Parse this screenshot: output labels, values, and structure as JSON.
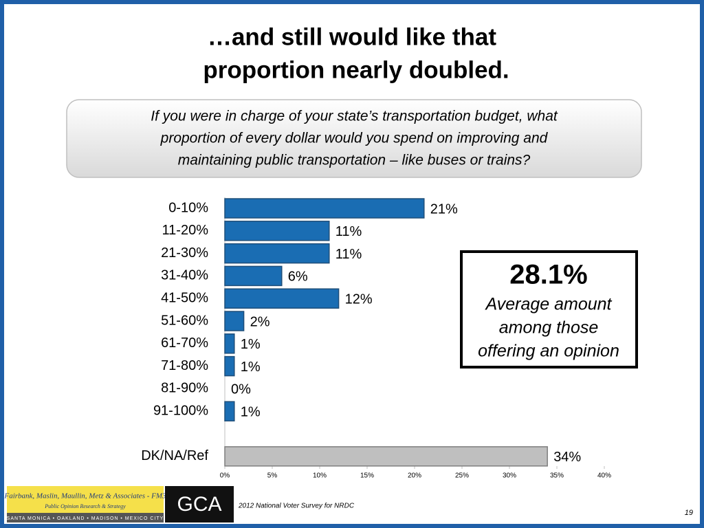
{
  "title": [
    "…and still would like that",
    "proportion nearly doubled."
  ],
  "question": [
    "If you were in charge of your state’s transportation budget, what",
    "proportion of every dollar would you spend on improving and",
    "maintaining public transportation – like buses or trains?"
  ],
  "callout": {
    "value": "28.1%",
    "text": [
      "Average amount",
      "among those",
      "offering an opinion"
    ]
  },
  "chart_data": {
    "type": "hbar",
    "categories": [
      "0-10%",
      "11-20%",
      "21-30%",
      "31-40%",
      "41-50%",
      "51-60%",
      "61-70%",
      "71-80%",
      "81-90%",
      "91-100%",
      "DK/NA/Ref"
    ],
    "values": [
      21,
      11,
      11,
      6,
      12,
      2,
      1,
      1,
      0,
      1,
      34
    ],
    "value_labels": [
      "21%",
      "11%",
      "11%",
      "6%",
      "12%",
      "2%",
      "1%",
      "1%",
      "0%",
      "1%",
      "34%"
    ],
    "colors": [
      "#1a6db3",
      "#1a6db3",
      "#1a6db3",
      "#1a6db3",
      "#1a6db3",
      "#1a6db3",
      "#1a6db3",
      "#1a6db3",
      "#1a6db3",
      "#1a6db3",
      "#bfbfbf"
    ],
    "xlim": [
      0,
      40
    ],
    "xticks": [
      {
        "value": 0,
        "label": "0%"
      },
      {
        "value": 5,
        "label": "5%"
      },
      {
        "value": 10,
        "label": "10%"
      },
      {
        "value": 15,
        "label": "15%"
      },
      {
        "value": 20,
        "label": "20%"
      },
      {
        "value": 25,
        "label": "25%"
      },
      {
        "value": 30,
        "label": "30%"
      },
      {
        "value": 35,
        "label": "35%"
      },
      {
        "value": 40,
        "label": "40%"
      }
    ]
  },
  "footer": {
    "firm": "Fairbank, Maslin, Maullin, Metz & Associates - FM3",
    "tagline": "Public Opinion Research & Strategy",
    "cities": "SANTA MONICA • OAKLAND • MADISON • MEXICO CITY",
    "logo": "GCA",
    "source": "2012 National Voter Survey for NRDC",
    "page": "19"
  }
}
